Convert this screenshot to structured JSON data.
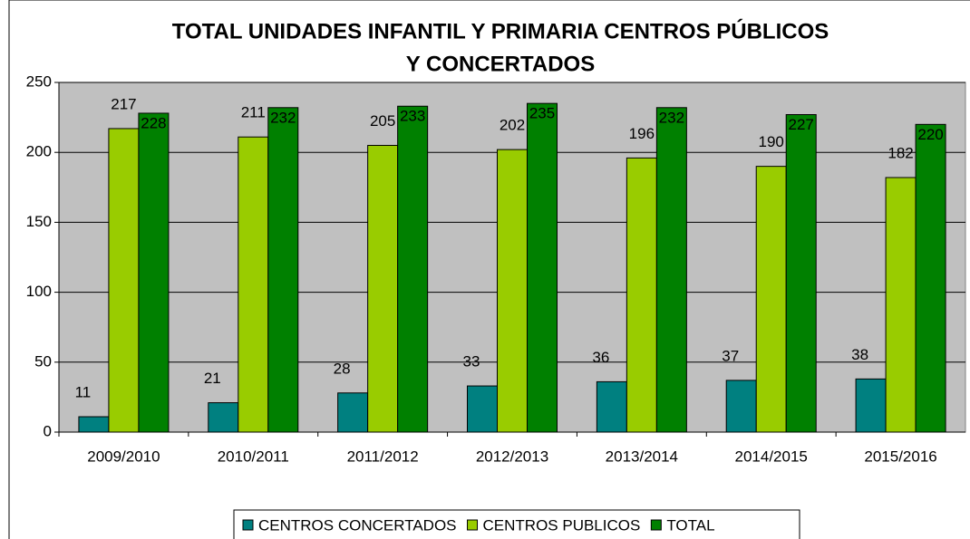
{
  "chart_data": {
    "type": "bar",
    "title": [
      "TOTAL UNIDADES INFANTIL Y PRIMARIA CENTROS PÚBLICOS",
      "Y CONCERTADOS"
    ],
    "categories": [
      "2009/2010",
      "2010/2011",
      "2011/2012",
      "2012/2013",
      "2013/2014",
      "2014/2015",
      "2015/2016"
    ],
    "series": [
      {
        "name": "CENTROS CONCERTADOS",
        "color": "#008080",
        "values": [
          11,
          21,
          28,
          33,
          36,
          37,
          38
        ]
      },
      {
        "name": "CENTROS PUBLICOS",
        "color": "#99cc00",
        "values": [
          217,
          211,
          205,
          202,
          196,
          190,
          182
        ]
      },
      {
        "name": "TOTAL",
        "color": "#008000",
        "values": [
          228,
          232,
          233,
          235,
          232,
          227,
          220
        ]
      }
    ],
    "ylim": [
      0,
      250
    ],
    "yticks": [
      0,
      50,
      100,
      150,
      200,
      250
    ],
    "grid": true,
    "legend": "bottom"
  }
}
